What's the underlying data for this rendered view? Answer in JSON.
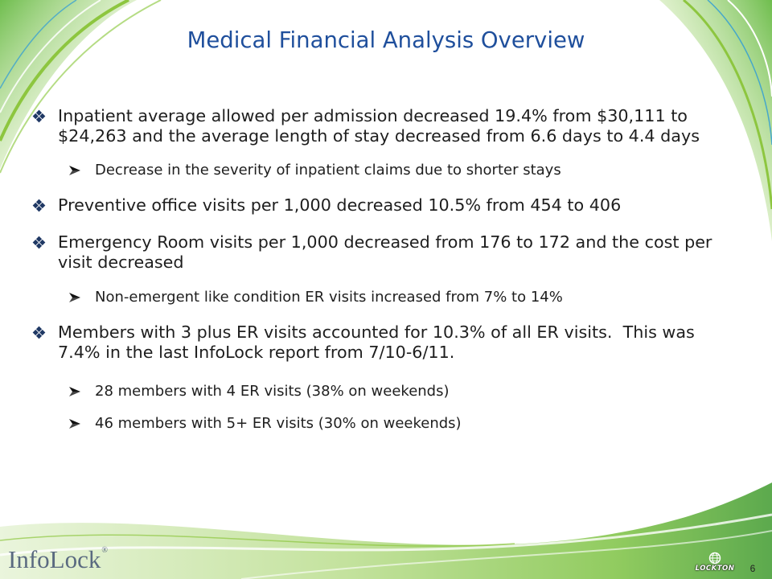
{
  "slide": {
    "title": "Medical Financial Analysis Overview",
    "bullets": [
      {
        "text": "Inpatient average allowed per admission decreased 19.4% from $30,111 to $24,263 and the average length of stay decreased from 6.6 days to 4.4 days",
        "sub": [
          "Decrease in the severity of inpatient claims due to shorter stays"
        ]
      },
      {
        "text": "Preventive office visits per 1,000 decreased 10.5% from 454 to 406",
        "sub": []
      },
      {
        "text": "Emergency Room visits per 1,000 decreased from 176 to 172 and the cost per visit decreased",
        "sub": [
          "Non-emergent like condition ER visits increased from 7% to 14%"
        ]
      },
      {
        "text": "Members with 3 plus ER visits accounted for 10.3% of all ER visits.  This was 7.4% in the last InfoLock report from 7/10-6/11.",
        "sub": [
          "28 members with 4 ER visits (38% on weekends)",
          "46 members with 5+ ER visits (30% on weekends)"
        ]
      }
    ]
  },
  "footer": {
    "brand_logo": "InfoLock",
    "brand_mark": "®",
    "partner_logo": "LOCKTON",
    "page_number": "6"
  },
  "icons": {
    "bullet": "four-diamond-bullet-icon",
    "sub_bullet": "arrowhead-bullet-icon",
    "partner_logo": "globe-icon"
  },
  "colors": {
    "title": "#1f4f9c",
    "body_text": "#1e1e1e",
    "bullet": "#1f3864",
    "swoosh_green": "#7dc243",
    "swoosh_blue": "#2b9ad8"
  }
}
